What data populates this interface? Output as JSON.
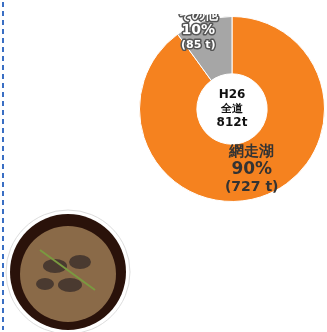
{
  "chart_data": {
    "type": "doughnut",
    "categories": [
      "網走湖",
      "その他"
    ],
    "values": [
      90,
      10
    ],
    "value_labels": [
      "90%",
      "10%"
    ],
    "tonne_labels": [
      "(727 t)",
      "(85 t)"
    ],
    "colors": [
      "#f5821f",
      "#a6a6a6"
    ],
    "center_text": [
      "H26",
      "全道",
      "812t"
    ],
    "data_labels": true
  }
}
